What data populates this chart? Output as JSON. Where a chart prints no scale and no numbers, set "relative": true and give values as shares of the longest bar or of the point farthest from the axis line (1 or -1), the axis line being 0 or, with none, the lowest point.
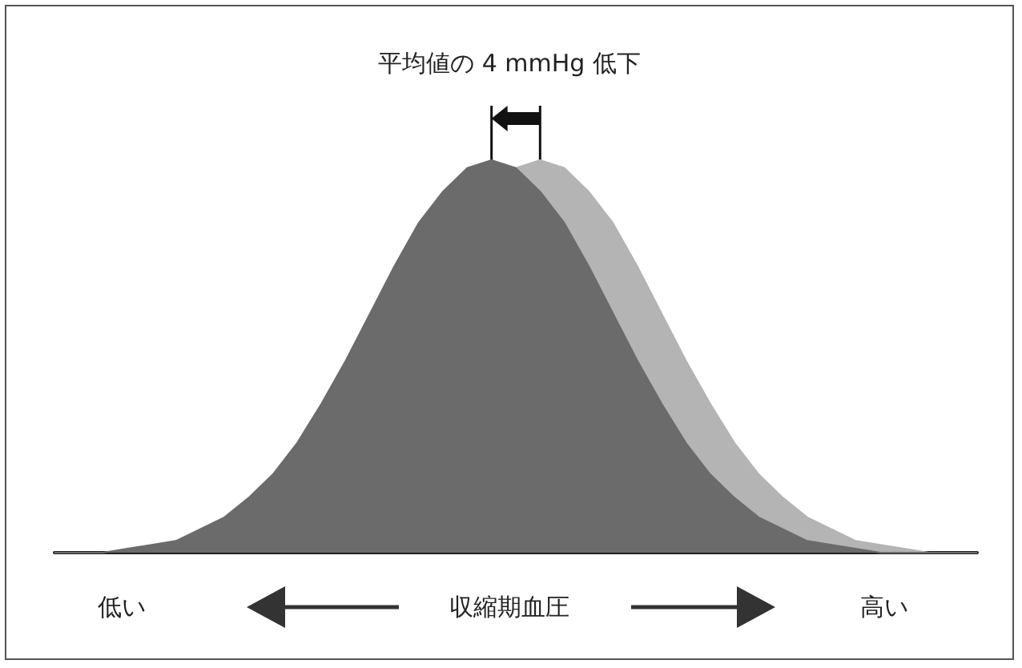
{
  "chart_data": {
    "type": "area",
    "relative": true,
    "xlabel": "収縮期血圧",
    "annotations": [
      "平均値の 4 mmHg 低下",
      "低い",
      "高い"
    ],
    "grid": false,
    "marker": "none",
    "categories": [
      null,
      null,
      null,
      null,
      null,
      null,
      null,
      null,
      null,
      null,
      null,
      null,
      null,
      null,
      null,
      null,
      null,
      null,
      null,
      null,
      null,
      null,
      null,
      null,
      null,
      null,
      null,
      null,
      null,
      null,
      null,
      null,
      null,
      null,
      null,
      null,
      null,
      null,
      null
    ],
    "series": [
      {
        "color": "#b4b4b4",
        "values": [
          null,
          null,
          null,
          null,
          null,
          null,
          null,
          null,
          null,
          null,
          null,
          null,
          null,
          null,
          null,
          null,
          null,
          null,
          null,
          0.98,
          1,
          0.98,
          0.92,
          0.84,
          0.73,
          0.61,
          0.49,
          0.38,
          0.28,
          0.2,
          0.14,
          0.09,
          0.06,
          0.03,
          0.02,
          0.01,
          0,
          0,
          0
        ]
      },
      {
        "color": "#6b6b6b",
        "values": [
          0,
          0,
          0,
          0.01,
          0.02,
          0.03,
          0.06,
          0.09,
          0.14,
          0.2,
          0.28,
          0.38,
          0.49,
          0.61,
          0.73,
          0.84,
          0.92,
          0.98,
          1,
          0.98,
          0.92,
          0.84,
          0.73,
          0.61,
          0.49,
          0.38,
          0.28,
          0.2,
          0.14,
          0.09,
          0.06,
          0.03,
          0.02,
          0.01,
          0,
          0,
          0,
          0,
          0
        ]
      }
    ]
  }
}
